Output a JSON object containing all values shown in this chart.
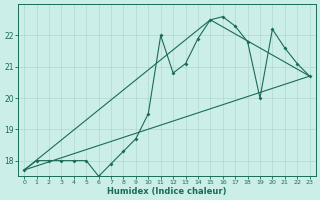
{
  "xlabel": "Humidex (Indice chaleur)",
  "bg_color": "#cceee8",
  "line_color": "#1a6b5a",
  "grid_color": "#b0d8d0",
  "xlim": [
    -0.5,
    23.5
  ],
  "ylim": [
    17.5,
    23.0
  ],
  "yticks": [
    18,
    19,
    20,
    21,
    22
  ],
  "ytick_labels": [
    "18",
    "19",
    "20",
    "21",
    "22"
  ],
  "xticks": [
    0,
    1,
    2,
    3,
    4,
    5,
    6,
    7,
    8,
    9,
    10,
    11,
    12,
    13,
    14,
    15,
    16,
    17,
    18,
    19,
    20,
    21,
    22,
    23
  ],
  "xtick_labels": [
    "0",
    "1",
    "2",
    "3",
    "4",
    "5",
    "6",
    "7",
    "8",
    "9",
    "10",
    "11",
    "12",
    "13",
    "14",
    "15",
    "16",
    "17",
    "18",
    "19",
    "20",
    "21",
    "22",
    "23"
  ],
  "series1_x": [
    0,
    1,
    2,
    3,
    4,
    5,
    6,
    7,
    8,
    9,
    10,
    11,
    12,
    13,
    14,
    15,
    16,
    17,
    18,
    19,
    20,
    21,
    22,
    23
  ],
  "series1_y": [
    17.7,
    18.0,
    18.0,
    18.0,
    18.0,
    18.0,
    17.5,
    17.9,
    18.3,
    18.7,
    19.5,
    22.0,
    20.8,
    21.1,
    21.9,
    22.5,
    22.6,
    22.3,
    21.8,
    20.0,
    22.2,
    21.6,
    21.1,
    20.7
  ],
  "series2_x": [
    0,
    23
  ],
  "series2_y": [
    17.7,
    20.7
  ],
  "series3_x": [
    0,
    15,
    23
  ],
  "series3_y": [
    17.7,
    22.5,
    20.7
  ]
}
